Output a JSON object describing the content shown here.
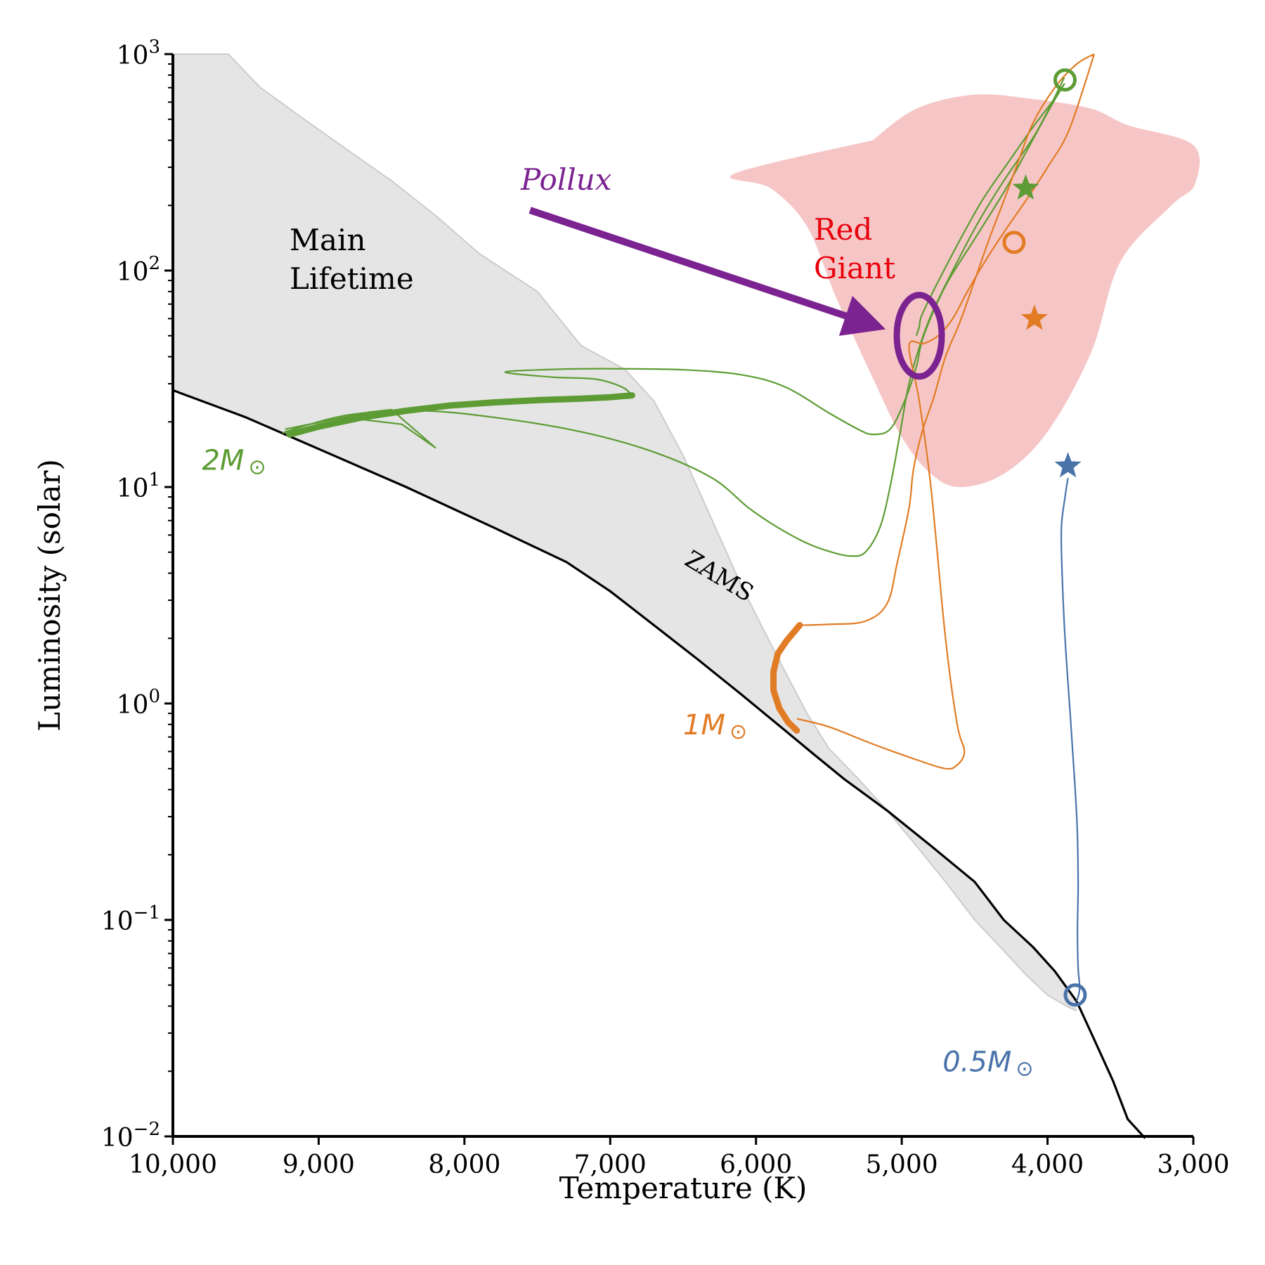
{
  "chart_data": {
    "type": "line",
    "xlabel": "Temperature (K)",
    "ylabel": "Luminosity (solar)",
    "xlim": [
      10000,
      3000
    ],
    "ylim": [
      0.01,
      1000
    ],
    "yscale": "log",
    "grid": false,
    "x_ticks": [
      {
        "value": 10000,
        "label": "10,000"
      },
      {
        "value": 9000,
        "label": "9,000"
      },
      {
        "value": 8000,
        "label": "8,000"
      },
      {
        "value": 7000,
        "label": "7,000"
      },
      {
        "value": 6000,
        "label": "6,000"
      },
      {
        "value": 5000,
        "label": "5,000"
      },
      {
        "value": 4000,
        "label": "4,000"
      },
      {
        "value": 3000,
        "label": "3,000"
      }
    ],
    "y_ticks": [
      {
        "value": 0.01,
        "base": "10",
        "exp": "−2"
      },
      {
        "value": 0.1,
        "base": "10",
        "exp": "−1"
      },
      {
        "value": 1,
        "base": "10",
        "exp": "0"
      },
      {
        "value": 10,
        "base": "10",
        "exp": "1"
      },
      {
        "value": 100,
        "base": "10",
        "exp": "2"
      },
      {
        "value": 1000,
        "base": "10",
        "exp": "3"
      }
    ],
    "zams": {
      "label": "ZAMS",
      "color": "#000000",
      "x": [
        10000,
        9500,
        9000,
        8400,
        7800,
        7300,
        7000,
        6700,
        6400,
        6100,
        5800,
        5600,
        5400,
        5100,
        4800,
        4500,
        4300,
        4100,
        3950,
        3800,
        3700,
        3550,
        3450,
        3330
      ],
      "y": [
        28,
        21,
        15,
        10,
        6.5,
        4.5,
        3.3,
        2.3,
        1.6,
        1.1,
        0.75,
        0.58,
        0.45,
        0.32,
        0.22,
        0.15,
        0.1,
        0.075,
        0.058,
        0.042,
        0.03,
        0.018,
        0.012,
        0.0098
      ]
    },
    "main_lifetime_region": {
      "label_lines": [
        "Main",
        "Lifetime"
      ],
      "color": "#e5e5e5",
      "edge_color": "#cccccc",
      "x": [
        10000,
        9620,
        9400,
        9100,
        8800,
        8500,
        8200,
        7900,
        7500,
        7200,
        6900,
        6700,
        6500,
        6300,
        6100,
        5950,
        5800,
        5650,
        5500,
        5300,
        5100,
        4900,
        4700,
        4500,
        4300,
        4150,
        4000,
        3870,
        3800
      ],
      "y_upper": [
        1000,
        1000,
        700,
        500,
        360,
        260,
        180,
        120,
        80,
        45,
        35,
        25,
        14,
        7,
        3.5,
        2.2,
        1.4,
        0.9,
        0.62,
        0.45,
        0.32,
        0.22,
        0.15,
        0.1,
        0.072,
        0.056,
        0.045,
        0.04,
        0.038
      ]
    },
    "red_giant_region": {
      "label_lines": [
        "Red",
        "Giant"
      ],
      "color": "#f6c6c7",
      "label_color": "#e8000b",
      "boundary": [
        {
          "t": 5200,
          "l": 400
        },
        {
          "t": 4900,
          "l": 560
        },
        {
          "t": 4500,
          "l": 650
        },
        {
          "t": 4100,
          "l": 620
        },
        {
          "t": 3700,
          "l": 560
        },
        {
          "t": 3450,
          "l": 470
        },
        {
          "t": 3000,
          "l": 380
        },
        {
          "t": 2990,
          "l": 250
        },
        {
          "t": 3150,
          "l": 200
        },
        {
          "t": 3500,
          "l": 110
        },
        {
          "t": 3700,
          "l": 42
        },
        {
          "t": 4000,
          "l": 18
        },
        {
          "t": 4300,
          "l": 11.5
        },
        {
          "t": 4600,
          "l": 10
        },
        {
          "t": 4800,
          "l": 11.5
        },
        {
          "t": 5000,
          "l": 17
        },
        {
          "t": 5200,
          "l": 32
        },
        {
          "t": 5450,
          "l": 75
        },
        {
          "t": 5650,
          "l": 160
        },
        {
          "t": 5900,
          "l": 240
        },
        {
          "t": 6150,
          "l": 280
        }
      ]
    },
    "pollux": {
      "label": "Pollux",
      "color": "#7b2390",
      "t": 4880,
      "l": 50,
      "arrow_from": {
        "t": 7550,
        "l": 190
      }
    },
    "series": [
      {
        "name": "2M_sun",
        "label_main": "2M",
        "label_sym": "⊙",
        "color": "#5d9c34",
        "label_pos": {
          "t": 9800,
          "l": 12
        },
        "ms_x": [
          9200,
          9000,
          8700,
          8400,
          8100,
          7800,
          7500,
          7200,
          7000,
          6850
        ],
        "ms_y": [
          17.5,
          19,
          21,
          22.5,
          23.8,
          24.6,
          25.2,
          25.6,
          26,
          26.5
        ],
        "evo_x": [
          6850,
          6920,
          7100,
          7400,
          7720,
          7350,
          7000,
          6500,
          6100,
          5800,
          5500,
          5300,
          5200,
          5080,
          4980,
          4900,
          4850,
          4700,
          4500,
          4300,
          4150,
          4040,
          3960,
          3885,
          3970,
          4100,
          4250,
          4450,
          4650,
          4850,
          4880,
          4900
        ],
        "evo_y": [
          26.5,
          29,
          31.5,
          32.2,
          34,
          35,
          35.2,
          34.8,
          33,
          29,
          22,
          18.5,
          17.5,
          18.5,
          25,
          36,
          50,
          85,
          140,
          230,
          350,
          480,
          600,
          730,
          600,
          460,
          330,
          210,
          120,
          65,
          55,
          50
        ],
        "hook_x": [
          9230,
          8950,
          8650,
          8500,
          8200,
          8430,
          8700,
          9000,
          9250
        ],
        "hook_y": [
          18.5,
          20.2,
          22.2,
          22.8,
          15.2,
          19.5,
          20.5,
          19.2,
          17.8
        ],
        "sg_x": [
          9230,
          8800,
          8300,
          7800,
          7200,
          6700,
          6300,
          6050,
          5850,
          5650,
          5480,
          5350,
          5250,
          5150,
          5080,
          5010,
          4960,
          4900,
          4800,
          4650,
          4480,
          4300,
          4100,
          3990,
          3885
        ],
        "sg_y": [
          18,
          21.5,
          22.5,
          21,
          18,
          14.5,
          11,
          8,
          6.5,
          5.5,
          5,
          4.8,
          5,
          6.5,
          10,
          18,
          28,
          40,
          62,
          100,
          165,
          260,
          410,
          560,
          780
        ],
        "circle": {
          "t": 3880,
          "l": 760
        },
        "star": {
          "t": 4150,
          "l": 240
        }
      },
      {
        "name": "1M_sun",
        "label_main": "1M",
        "label_sym": "⊙",
        "color": "#e17c24",
        "label_pos": {
          "t": 6500,
          "l": 0.72
        },
        "ms_x": [
          5720,
          5780,
          5840,
          5880,
          5880,
          5850,
          5790,
          5750,
          5700
        ],
        "ms_y": [
          0.75,
          0.82,
          0.95,
          1.15,
          1.4,
          1.7,
          1.95,
          2.1,
          2.3
        ],
        "evo_x": [
          5700,
          5500,
          5250,
          5100,
          5030,
          4950,
          4920,
          4860,
          4780,
          4700,
          4600,
          4500,
          4400,
          4300,
          4200,
          4100,
          3950,
          3800,
          3680
        ],
        "evo_y": [
          2.3,
          2.32,
          2.4,
          2.9,
          4.5,
          8,
          12,
          18,
          26,
          40,
          58,
          90,
          140,
          210,
          320,
          480,
          700,
          900,
          1000
        ],
        "sg_x": [
          5720,
          5500,
          5200,
          4900,
          4700,
          4620,
          4570,
          4620,
          4700,
          4800,
          4880,
          4950,
          4850,
          4750,
          4650,
          4550,
          4430,
          4300,
          4150,
          4000,
          3850,
          3680
        ],
        "sg_y": [
          0.85,
          0.78,
          0.65,
          0.55,
          0.5,
          0.52,
          0.6,
          0.8,
          2,
          10,
          25,
          45,
          46,
          50,
          60,
          80,
          110,
          150,
          210,
          300,
          450,
          1000
        ],
        "circle": {
          "t": 4230,
          "l": 135
        },
        "star": {
          "t": 4090,
          "l": 60
        }
      },
      {
        "name": "0.5M_sun",
        "label_main": "0.5M",
        "label_sym": "⊙",
        "color": "#4a73aa",
        "label_pos": {
          "t": 4720,
          "l": 0.02
        },
        "evo_x": [
          3800,
          3780,
          3790,
          3795,
          3790,
          3800,
          3840,
          3880,
          3900,
          3905,
          3880,
          3860
        ],
        "evo_y": [
          0.042,
          0.048,
          0.06,
          0.09,
          0.15,
          0.3,
          0.8,
          2,
          4,
          6.5,
          9,
          11
        ],
        "circle": {
          "t": 3810,
          "l": 0.045
        },
        "star": {
          "t": 3860,
          "l": 12.5
        }
      }
    ]
  }
}
